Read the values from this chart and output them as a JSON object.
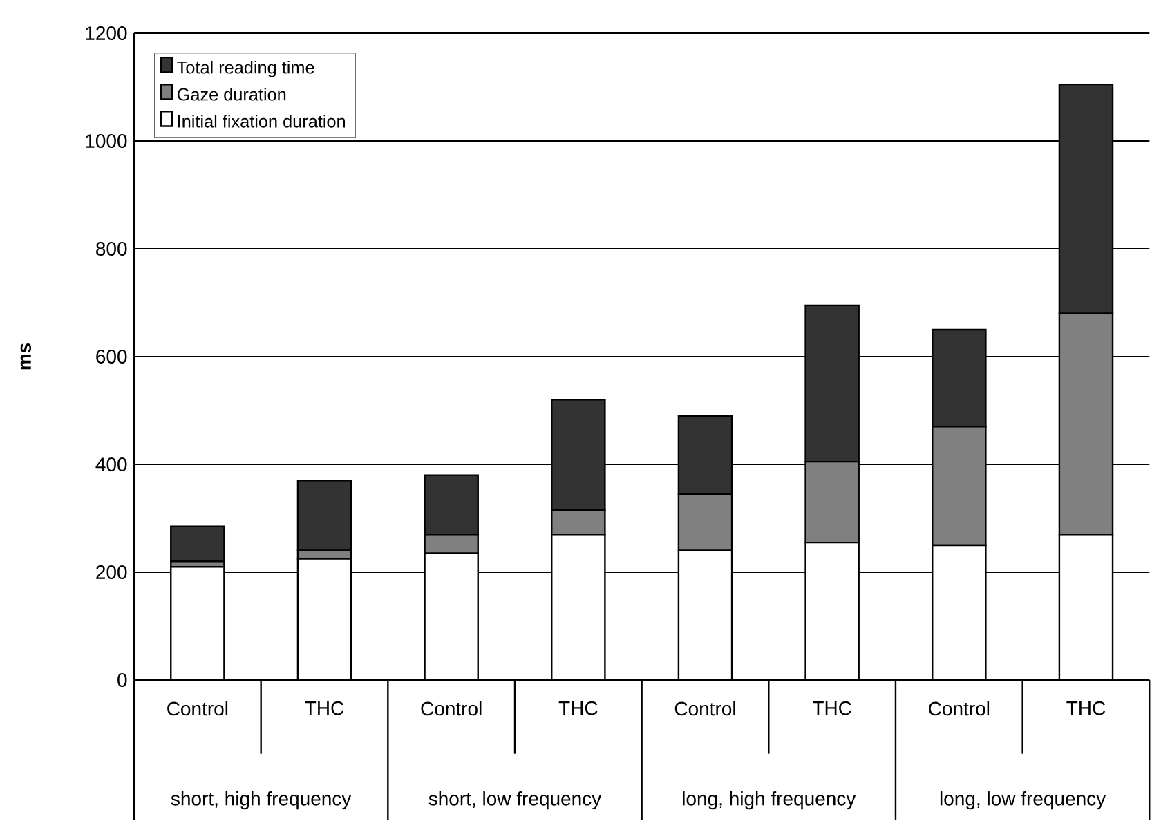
{
  "chart_data": {
    "type": "bar",
    "stacked": true,
    "ylabel": "ms",
    "categories": [
      "Control",
      "THC",
      "Control",
      "THC",
      "Control",
      "THC",
      "Control",
      "THC"
    ],
    "series": [
      {
        "name": "Initial fixation duration",
        "color": "#ffffff",
        "values": [
          210,
          225,
          235,
          270,
          240,
          255,
          250,
          270
        ]
      },
      {
        "name": "Gaze duration",
        "color": "#808080",
        "values": [
          10,
          15,
          35,
          45,
          105,
          150,
          220,
          410
        ]
      },
      {
        "name": "Total reading time",
        "color": "#333333",
        "values": [
          65,
          130,
          110,
          205,
          145,
          290,
          180,
          425
        ]
      }
    ],
    "annotations": [
      "short, high frequency",
      "short, low frequency",
      "long, high frequency",
      "long, low frequency"
    ],
    "ylim": [
      0,
      1200
    ],
    "yticks": [
      0,
      200,
      400,
      600,
      800,
      1000,
      1200
    ],
    "grid": "y",
    "legend": "top left"
  }
}
